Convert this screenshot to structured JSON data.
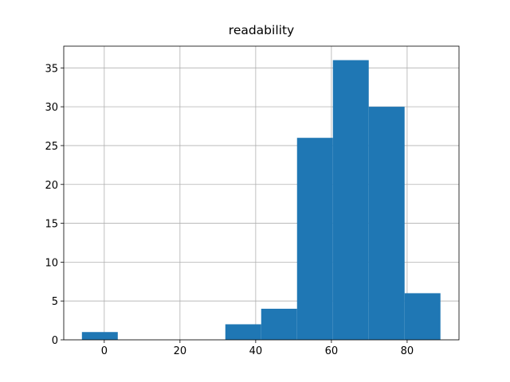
{
  "chart_data": {
    "type": "histogram",
    "title": "readability",
    "bins": [
      -5.9,
      3.57,
      13.04,
      22.51,
      31.98,
      41.45,
      50.92,
      60.39,
      69.86,
      79.33,
      88.8
    ],
    "values": [
      1,
      0,
      0,
      0,
      2,
      4,
      26,
      36,
      30,
      6
    ],
    "color": "#1f77b4",
    "xlim": [
      -10.7,
      93.7
    ],
    "xticks": [
      0,
      20,
      40,
      60,
      80
    ],
    "ylim": [
      0,
      37.8
    ],
    "yticks": [
      0,
      5,
      10,
      15,
      20,
      25,
      30,
      35
    ],
    "grid": true
  }
}
